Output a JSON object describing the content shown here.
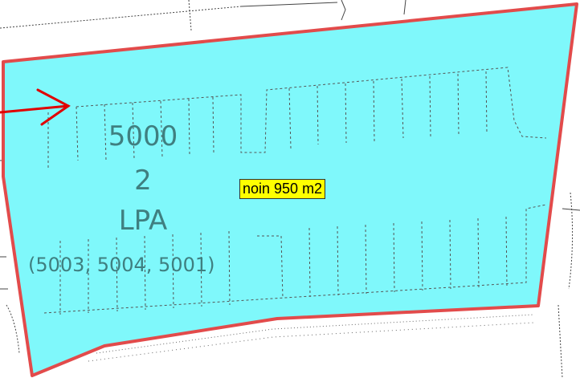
{
  "parcel": {
    "block_number": "5000",
    "plot_number": "2",
    "use_code": "LPA",
    "plot_codes": "(5003, 5004, 5001)",
    "area_badge": "noin 950 m2"
  },
  "colors": {
    "parcel_fill": "#7ff8fb",
    "boundary": "#e24b4b",
    "label_text": "#3f7f80",
    "badge_bg": "#ffff00",
    "arrow": "#e00000"
  },
  "icons": [
    "red-arrow-icon"
  ]
}
